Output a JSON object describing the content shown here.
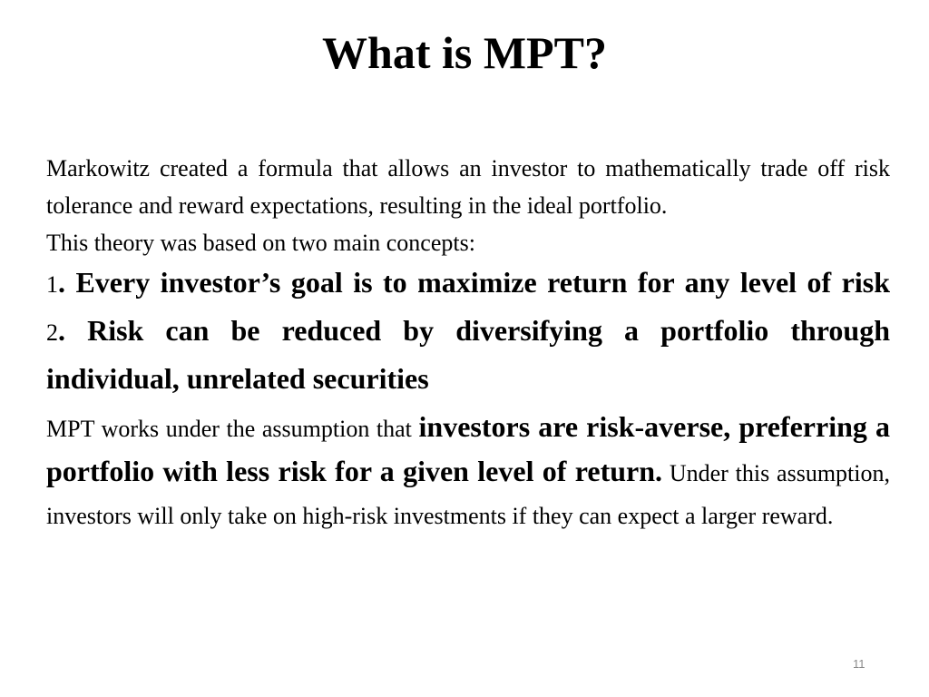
{
  "slide": {
    "title": "What is MPT?",
    "intro_paragraph": "Markowitz created a formula that allows an investor to mathematically trade off risk tolerance and reward expectations, resulting in the ideal portfolio.",
    "concepts_intro": "This theory was based on two main concepts:",
    "concepts": [
      {
        "number": "1",
        "text": ". Every investor’s goal is to maximize return for any level of risk"
      },
      {
        "number": "2",
        "text": ". Risk can be reduced by diversifying a portfolio through individual, unrelated securities"
      }
    ],
    "assumption": {
      "lead": "MPT works under the assumption that ",
      "emphasis": "investors are risk-averse, preferring a portfolio with less risk for a given level of return.",
      "tail": " Under this assumption, investors will only take on high-risk investments if they can expect a larger reward."
    },
    "page_number": "11"
  }
}
